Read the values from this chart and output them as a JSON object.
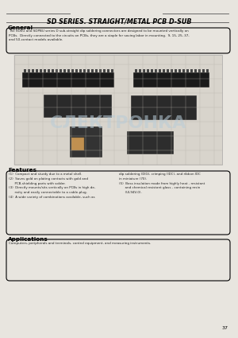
{
  "title": "SD SERIES. STRAIGHT/METAL PCB D-SUB",
  "bg_color": "#e8e5df",
  "general_heading": "General",
  "general_text": "The SDEG and SDPBU series D sub-straight dip soldering connectors are designed to be mounted vertically on\nPCBs.  Directly connected to the circuits on PCBs, they are a staple for saving labor in mounting.  9, 15, 25, 37,\nand 50-contact models available.",
  "features_heading": "Features",
  "features_text_left": "(1)  Compact and sturdy due to a metal shell.\n(2)  Saves gold on plating contacts with gold and\n      PCB-shielding parts with solder.\n(3)  Directly mounts/sits vertically on PCBs in high de-\n      nsity and easily connectable to a cable-plug.\n(4)  A wide variety of combinations available, such as",
  "features_text_right": "dip soldering (DIG), crimping (IDC), and ribbon IDC\nin miniature (70).\n(5)  Boss insulation made from highly heat - resistant\n      and chemical resistant glass - containing resin\n      (UL94V-0).",
  "applications_heading": "Applications",
  "applications_text": "Computers, peripherals and terminals, control equipment, and measuring instruments.",
  "page_number": "37",
  "watermark_text": "СЛЕКТРОНКА",
  "watermark_color": "#b8ccd8"
}
